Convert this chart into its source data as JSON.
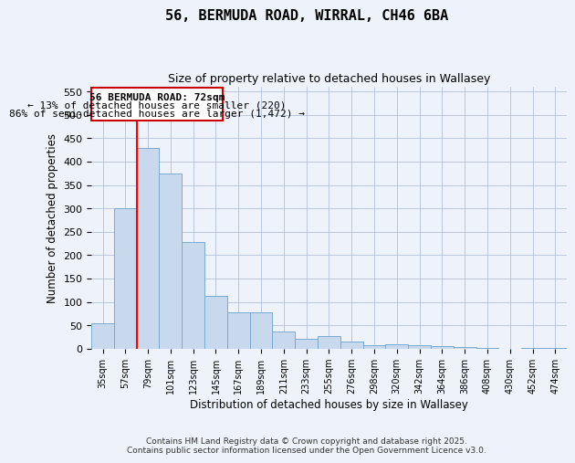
{
  "title": "56, BERMUDA ROAD, WIRRAL, CH46 6BA",
  "subtitle": "Size of property relative to detached houses in Wallasey",
  "xlabel": "Distribution of detached houses by size in Wallasey",
  "ylabel": "Number of detached properties",
  "bar_color": "#c9d9ed",
  "bar_edge_color": "#7aaad0",
  "background_color": "#eef2fb",
  "grid_color": "#b0c0dc",
  "annotation_box_color": "#cc0000",
  "categories": [
    "35sqm",
    "57sqm",
    "79sqm",
    "101sqm",
    "123sqm",
    "145sqm",
    "167sqm",
    "189sqm",
    "211sqm",
    "233sqm",
    "255sqm",
    "276sqm",
    "298sqm",
    "320sqm",
    "342sqm",
    "364sqm",
    "386sqm",
    "408sqm",
    "430sqm",
    "452sqm",
    "474sqm"
  ],
  "values": [
    55,
    300,
    430,
    375,
    228,
    113,
    78,
    78,
    37,
    20,
    26,
    15,
    8,
    9,
    7,
    6,
    4,
    2,
    0,
    2,
    2
  ],
  "vline_x_idx": 1.5,
  "annotation_title": "56 BERMUDA ROAD: 72sqm",
  "annotation_line1": "← 13% of detached houses are smaller (220)",
  "annotation_line2": "86% of semi-detached houses are larger (1,472) →",
  "ylim": [
    0,
    560
  ],
  "yticks": [
    0,
    50,
    100,
    150,
    200,
    250,
    300,
    350,
    400,
    450,
    500,
    550
  ],
  "footer1": "Contains HM Land Registry data © Crown copyright and database right 2025.",
  "footer2": "Contains public sector information licensed under the Open Government Licence v3.0."
}
